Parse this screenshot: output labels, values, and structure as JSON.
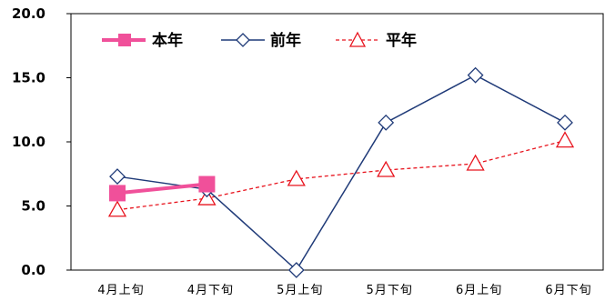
{
  "chart_data": {
    "type": "line",
    "categories": [
      "4月上旬",
      "4月下旬",
      "5月上旬",
      "5月下旬",
      "6月上旬",
      "6月下旬"
    ],
    "y_ticks": [
      "0.0",
      "5.0",
      "10.0",
      "15.0",
      "20.0"
    ],
    "ylim": [
      0,
      20
    ],
    "grid": false,
    "legend_placement": "top-left",
    "series": [
      {
        "name": "本年",
        "values": [
          6.0,
          6.7,
          null,
          null,
          null,
          null
        ],
        "color": "#f0509a",
        "marker": "square",
        "line_style": "solid-thick"
      },
      {
        "name": "前年",
        "values": [
          7.3,
          6.3,
          0.0,
          11.5,
          15.2,
          11.5
        ],
        "color": "#1f3a78",
        "marker": "diamond-open",
        "line_style": "solid"
      },
      {
        "name": "平年",
        "values": [
          4.7,
          5.6,
          7.1,
          7.8,
          8.3,
          10.1
        ],
        "color": "#e8141e",
        "marker": "triangle-open",
        "line_style": "dashed"
      }
    ]
  }
}
